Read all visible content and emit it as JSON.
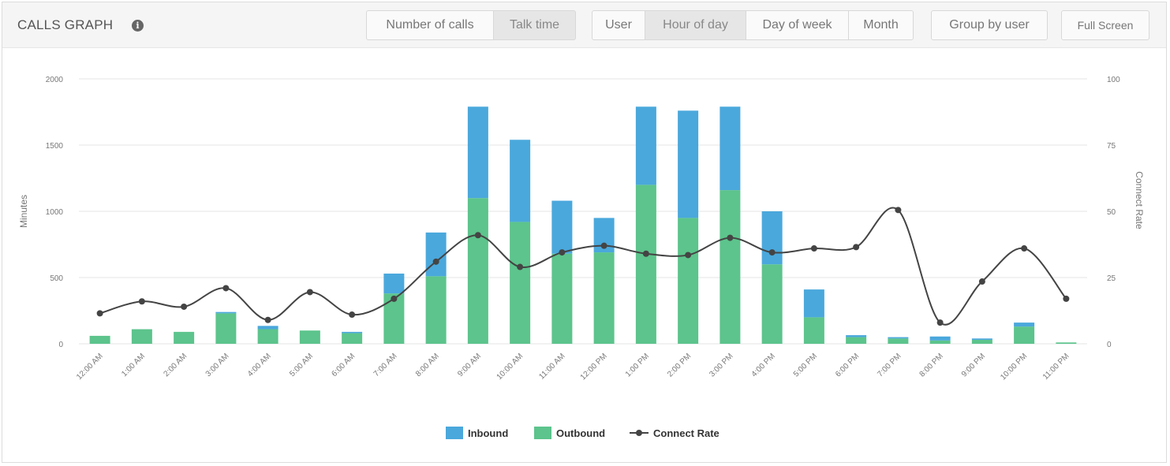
{
  "header": {
    "title": "CALLS GRAPH",
    "metric_buttons": [
      {
        "label": "Number of calls",
        "active": false
      },
      {
        "label": "Talk time",
        "active": true
      }
    ],
    "period_buttons": [
      {
        "label": "User",
        "active": false
      },
      {
        "label": "Hour of day",
        "active": true
      },
      {
        "label": "Day of week",
        "active": false
      },
      {
        "label": "Month",
        "active": false
      }
    ],
    "group_button": "Group by user",
    "fullscreen_button": "Full Screen"
  },
  "colors": {
    "inbound": "#4aa8dc",
    "outbound": "#5cc48c",
    "connect_rate": "#444444",
    "grid": "#e6e6e6"
  },
  "chart_data": {
    "type": "bar",
    "stacked": true,
    "categories": [
      "12:00 AM",
      "1:00 AM",
      "2:00 AM",
      "3:00 AM",
      "4:00 AM",
      "5:00 AM",
      "6:00 AM",
      "7:00 AM",
      "8:00 AM",
      "9:00 AM",
      "10:00 AM",
      "11:00 AM",
      "12:00 PM",
      "1:00 PM",
      "2:00 PM",
      "3:00 PM",
      "4:00 PM",
      "5:00 PM",
      "6:00 PM",
      "7:00 PM",
      "8:00 PM",
      "9:00 PM",
      "10:00 PM",
      "11:00 PM"
    ],
    "series": [
      {
        "name": "Outbound",
        "type": "bar",
        "axis": "left",
        "values": [
          60,
          110,
          90,
          230,
          110,
          100,
          80,
          380,
          510,
          1100,
          920,
          680,
          690,
          1200,
          950,
          1160,
          600,
          200,
          50,
          40,
          25,
          30,
          130,
          10
        ]
      },
      {
        "name": "Inbound",
        "type": "bar",
        "axis": "left",
        "values": [
          0,
          0,
          0,
          10,
          25,
          0,
          10,
          150,
          330,
          690,
          620,
          400,
          260,
          590,
          810,
          630,
          400,
          210,
          15,
          10,
          30,
          10,
          30,
          0
        ]
      },
      {
        "name": "Connect Rate",
        "type": "line",
        "axis": "right",
        "smooth": true,
        "values": [
          11.5,
          16,
          14,
          21,
          9,
          19.5,
          11,
          17,
          31,
          41,
          29,
          34.5,
          37,
          34,
          33.5,
          40,
          34.5,
          36,
          36.5,
          50.5,
          8,
          23.5,
          36,
          17
        ]
      }
    ],
    "ylabel": "Minutes",
    "ylim": [
      0,
      2000
    ],
    "yticks": [
      0,
      500,
      1000,
      1500,
      2000
    ],
    "y2label": "Connect Rate",
    "y2lim": [
      0,
      100
    ],
    "y2ticks": [
      0,
      25,
      50,
      75,
      100
    ],
    "legend": [
      {
        "name": "Inbound",
        "kind": "bar"
      },
      {
        "name": "Outbound",
        "kind": "bar"
      },
      {
        "name": "Connect Rate",
        "kind": "line"
      }
    ],
    "legend_position": "bottom-center",
    "grid": true
  }
}
